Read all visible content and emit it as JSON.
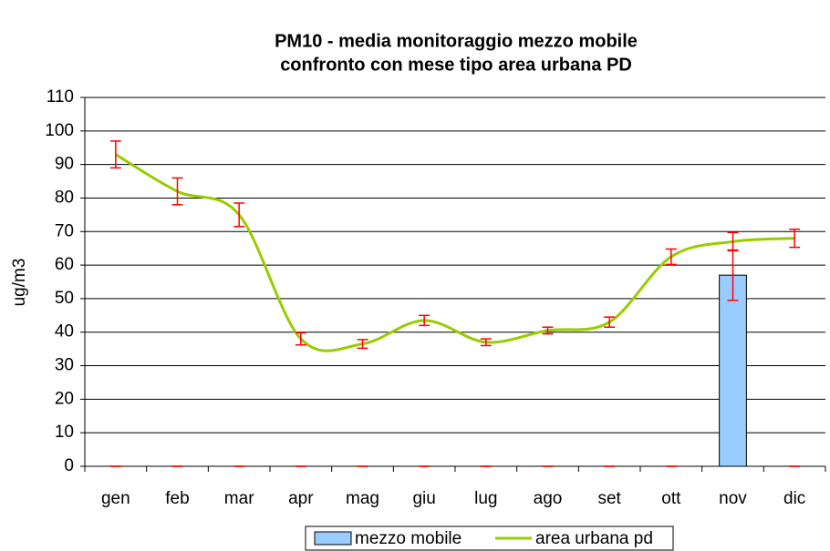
{
  "chart_data": {
    "type": "bar_line",
    "title": "PM10 -  media monitoraggio mezzo mobile",
    "subtitle": "confronto con mese tipo area urbana PD",
    "y_label": "ug/m3",
    "categories": [
      "gen",
      "feb",
      "mar",
      "apr",
      "mag",
      "giu",
      "lug",
      "ago",
      "set",
      "ott",
      "nov",
      "dic"
    ],
    "series": [
      {
        "name": "mezzo mobile",
        "kind": "bar",
        "color": "#99ccff",
        "error_color": "#ff0000",
        "values": [
          0,
          0,
          0,
          0,
          0,
          0,
          0,
          0,
          0,
          0,
          57,
          0
        ],
        "errors": [
          0,
          0,
          0,
          0,
          0,
          0,
          0,
          0,
          0,
          0,
          7.5,
          0
        ]
      },
      {
        "name": "area urbana pd",
        "kind": "line",
        "color": "#99cc00",
        "error_color": "#ff0000",
        "values": [
          93,
          82,
          75,
          38,
          36.5,
          43.5,
          37,
          40.5,
          43,
          62.5,
          67,
          68
        ],
        "errors": [
          4,
          4,
          3.5,
          1.8,
          1.3,
          1.5,
          1,
          1,
          1.5,
          2.3,
          2.7,
          2.7
        ]
      }
    ],
    "ylim": [
      0,
      110
    ],
    "yticks": [
      0,
      10,
      20,
      30,
      40,
      50,
      60,
      70,
      80,
      90,
      100,
      110
    ],
    "grid": true,
    "legend": "bottom"
  }
}
